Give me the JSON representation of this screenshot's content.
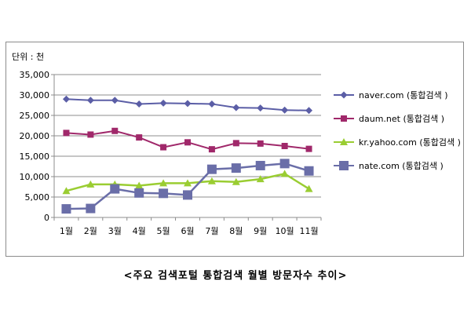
{
  "chart_data": {
    "type": "line",
    "unit_label": "단위 : 천",
    "categories": [
      "1월",
      "2월",
      "3월",
      "4월",
      "5월",
      "6월",
      "7월",
      "8월",
      "9월",
      "10월",
      "11월"
    ],
    "ylim": [
      0,
      35000
    ],
    "y_ticks": [
      "0",
      "5,000",
      "10,000",
      "15,000",
      "20,000",
      "25,000",
      "30,000",
      "35,000"
    ],
    "grid": true,
    "legend_position": "right",
    "series": [
      {
        "name": "naver.com (통합검색 )",
        "color": "#5b5ea6",
        "marker": "diamond",
        "values": [
          29000,
          28700,
          28700,
          27800,
          28000,
          27900,
          27800,
          26900,
          26800,
          26300,
          26200
        ]
      },
      {
        "name": "daum.net (통합검색 )",
        "color": "#a0286a",
        "marker": "square",
        "values": [
          20700,
          20300,
          21200,
          19600,
          17200,
          18400,
          16700,
          18200,
          18100,
          17500,
          16800
        ]
      },
      {
        "name": "kr.yahoo.com (통합검색 )",
        "color": "#9acd32",
        "marker": "triangle",
        "values": [
          6500,
          8100,
          8100,
          7800,
          8400,
          8400,
          8900,
          8700,
          9400,
          10700,
          7000
        ]
      },
      {
        "name": "nate.com (통합검색 )",
        "color": "#6a6ea8",
        "marker": "bigsquare",
        "values": [
          2100,
          2200,
          7000,
          6000,
          5900,
          5500,
          11800,
          12100,
          12700,
          13200,
          11400
        ]
      }
    ]
  },
  "caption": "<주요 검색포털 통합검색 월별 방문자수 추이>"
}
